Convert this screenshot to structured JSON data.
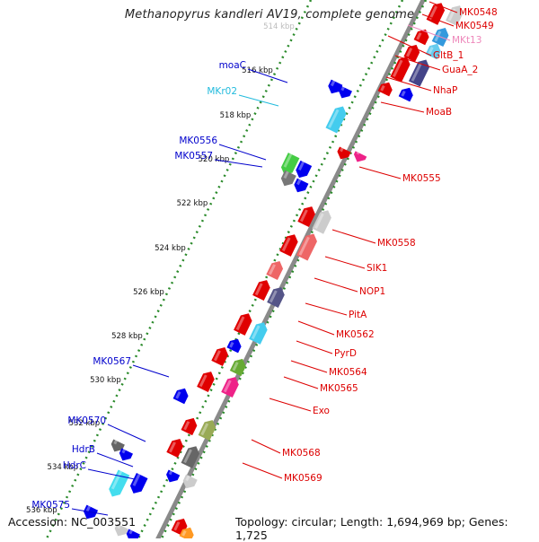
{
  "title": "Methanopyrus kandleri AV19, complete genome",
  "accession": "Accession: NC_003551",
  "topology": "Topology: circular; Length: 1,694,969 bp; Genes: 1,725",
  "colors": {
    "backbone": "#8a8a8a",
    "scale_dots": "#2a8a2a",
    "label_red": "#dd0000",
    "label_blue": "#0000cc",
    "label_cyan": "#22bbdd",
    "label_pink": "#ee88bb"
  },
  "scale_ticks": [
    "514 kbp",
    "516 kbp",
    "518 kbp",
    "520 kbp",
    "522 kbp",
    "524 kbp",
    "526 kbp",
    "528 kbp",
    "530 kbp",
    "532 kbp",
    "534 kbp",
    "536 kbp"
  ],
  "left_labels": [
    {
      "text": "moaC",
      "color": "blue"
    },
    {
      "text": "MKr02",
      "color": "cyan"
    },
    {
      "text": "MK0556",
      "color": "blue"
    },
    {
      "text": "MK0557",
      "color": "blue"
    },
    {
      "text": "MK0567",
      "color": "blue"
    },
    {
      "text": "MK0570",
      "color": "blue"
    },
    {
      "text": "HdrB",
      "color": "blue"
    },
    {
      "text": "HdrC",
      "color": "blue"
    },
    {
      "text": "MK0575",
      "color": "blue"
    }
  ],
  "right_labels": [
    {
      "text": "MK0548",
      "color": "red"
    },
    {
      "text": "MK0549",
      "color": "red"
    },
    {
      "text": "MKt13",
      "color": "pink"
    },
    {
      "text": "GltB_1",
      "color": "red"
    },
    {
      "text": "GuaA_2",
      "color": "red"
    },
    {
      "text": "NhaP",
      "color": "red"
    },
    {
      "text": "MoaB",
      "color": "red"
    },
    {
      "text": "MK0555",
      "color": "red"
    },
    {
      "text": "MK0558",
      "color": "red"
    },
    {
      "text": "SIK1",
      "color": "red"
    },
    {
      "text": "NOP1",
      "color": "red"
    },
    {
      "text": "PitA",
      "color": "red"
    },
    {
      "text": "MK0562",
      "color": "red"
    },
    {
      "text": "PyrD",
      "color": "red"
    },
    {
      "text": "MK0564",
      "color": "red"
    },
    {
      "text": "MK0565",
      "color": "red"
    },
    {
      "text": "Exo",
      "color": "red"
    },
    {
      "text": "MK0568",
      "color": "red"
    },
    {
      "text": "MK0569",
      "color": "red"
    }
  ]
}
